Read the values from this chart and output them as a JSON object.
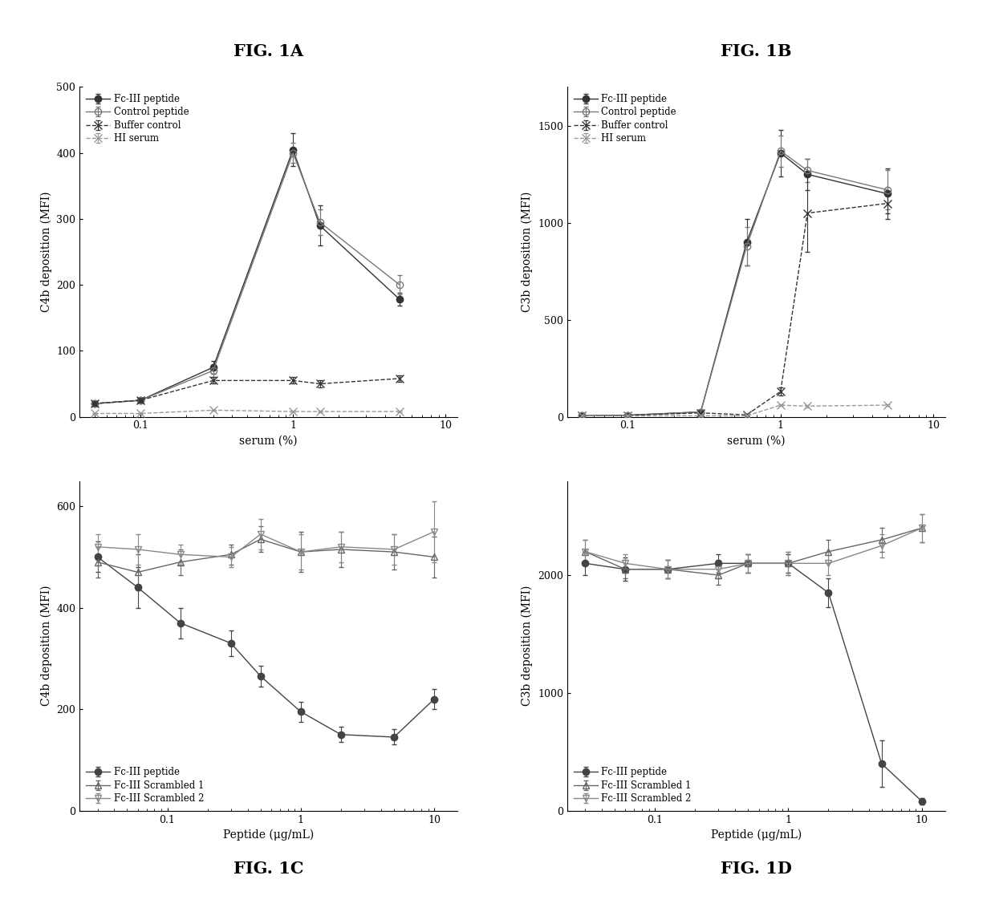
{
  "fig1A": {
    "title": "FIG. 1A",
    "xlabel": "serum (%)",
    "ylabel": "C4b deposition (MFI)",
    "ylim": [
      0,
      500
    ],
    "yticks": [
      0,
      100,
      200,
      300,
      400,
      500
    ],
    "xdata": [
      0.05,
      0.1,
      0.3,
      1.0,
      1.5,
      5.0
    ],
    "series": [
      {
        "label": "Fc-III peptide",
        "y": [
          20,
          25,
          75,
          405,
          290,
          178
        ],
        "yerr": [
          3,
          3,
          10,
          25,
          30,
          10
        ],
        "marker": "o",
        "linestyle": "-",
        "color": "#333333",
        "fillstyle": "full",
        "markersize": 6
      },
      {
        "label": "Control peptide",
        "y": [
          20,
          25,
          70,
          400,
          295,
          200
        ],
        "yerr": [
          3,
          3,
          10,
          15,
          20,
          15
        ],
        "marker": "o",
        "linestyle": "-",
        "color": "#777777",
        "fillstyle": "none",
        "markersize": 6
      },
      {
        "label": "Buffer control",
        "y": [
          20,
          25,
          55,
          55,
          50,
          58
        ],
        "yerr": [
          3,
          3,
          5,
          5,
          5,
          5
        ],
        "marker": "x",
        "linestyle": "--",
        "color": "#333333",
        "fillstyle": "full",
        "markersize": 7
      },
      {
        "label": "HI serum",
        "y": [
          5,
          5,
          10,
          8,
          8,
          8
        ],
        "yerr": [
          1,
          1,
          1,
          1,
          1,
          1
        ],
        "marker": "x",
        "linestyle": "--",
        "color": "#999999",
        "fillstyle": "full",
        "markersize": 7
      }
    ]
  },
  "fig1B": {
    "title": "FIG. 1B",
    "xlabel": "serum (%)",
    "ylabel": "C3b deposition (MFI)",
    "ylim": [
      0,
      1700
    ],
    "yticks": [
      0,
      500,
      1000,
      1500
    ],
    "xdata": [
      0.05,
      0.1,
      0.3,
      0.6,
      1.0,
      1.5,
      5.0
    ],
    "series": [
      {
        "label": "Fc-III peptide",
        "y": [
          5,
          8,
          25,
          900,
          1360,
          1250,
          1150
        ],
        "yerr": [
          2,
          3,
          5,
          120,
          120,
          80,
          130
        ],
        "marker": "o",
        "linestyle": "-",
        "color": "#333333",
        "fillstyle": "full",
        "markersize": 6
      },
      {
        "label": "Control peptide",
        "y": [
          5,
          8,
          25,
          880,
          1370,
          1270,
          1170
        ],
        "yerr": [
          2,
          3,
          5,
          100,
          80,
          60,
          100
        ],
        "marker": "o",
        "linestyle": "-",
        "color": "#777777",
        "fillstyle": "none",
        "markersize": 6
      },
      {
        "label": "Buffer control",
        "y": [
          5,
          8,
          20,
          10,
          130,
          1050,
          1100
        ],
        "yerr": [
          1,
          2,
          3,
          5,
          20,
          200,
          50
        ],
        "marker": "x",
        "linestyle": "--",
        "color": "#333333",
        "fillstyle": "full",
        "markersize": 7
      },
      {
        "label": "HI serum",
        "y": [
          5,
          5,
          5,
          5,
          60,
          55,
          60
        ],
        "yerr": [
          1,
          1,
          1,
          1,
          5,
          5,
          5
        ],
        "marker": "x",
        "linestyle": "--",
        "color": "#999999",
        "fillstyle": "full",
        "markersize": 7
      }
    ]
  },
  "fig1C": {
    "title": "FIG. 1C",
    "xlabel": "Peptide (μg/mL)",
    "ylabel": "C4b deposition (MFI)",
    "ylim": [
      0,
      650
    ],
    "yticks": [
      0,
      200,
      400,
      600
    ],
    "xdata": [
      0.03,
      0.06,
      0.125,
      0.3,
      0.5,
      1.0,
      2.0,
      5.0,
      10.0
    ],
    "series": [
      {
        "label": "Fc-III peptide",
        "y": [
          500,
          440,
          370,
          330,
          265,
          195,
          150,
          145,
          220
        ],
        "yerr": [
          30,
          40,
          30,
          25,
          20,
          20,
          15,
          15,
          20
        ],
        "marker": "o",
        "linestyle": "-",
        "color": "#444444",
        "fillstyle": "full",
        "markersize": 6
      },
      {
        "label": "Fc-III Scrambled 1",
        "y": [
          490,
          470,
          490,
          505,
          535,
          510,
          515,
          510,
          500
        ],
        "yerr": [
          30,
          35,
          25,
          20,
          25,
          40,
          35,
          35,
          40
        ],
        "marker": "^",
        "linestyle": "-",
        "color": "#666666",
        "fillstyle": "none",
        "markersize": 6
      },
      {
        "label": "Fc-III Scrambled 2",
        "y": [
          520,
          515,
          505,
          500,
          545,
          510,
          520,
          515,
          550
        ],
        "yerr": [
          25,
          30,
          20,
          20,
          30,
          35,
          30,
          30,
          60
        ],
        "marker": "v",
        "linestyle": "-",
        "color": "#888888",
        "fillstyle": "none",
        "markersize": 6
      }
    ]
  },
  "fig1D": {
    "title": "FIG. 1D",
    "xlabel": "Peptide (μg/mL)",
    "ylabel": "C3b deposition (MFI)",
    "ylim": [
      0,
      2800
    ],
    "yticks": [
      0,
      1000,
      2000
    ],
    "xdata": [
      0.03,
      0.06,
      0.125,
      0.3,
      0.5,
      1.0,
      2.0,
      5.0,
      10.0
    ],
    "series": [
      {
        "label": "Fc-III peptide",
        "y": [
          2100,
          2050,
          2050,
          2100,
          2100,
          2100,
          1850,
          400,
          80
        ],
        "yerr": [
          100,
          100,
          80,
          80,
          80,
          80,
          120,
          200,
          30
        ],
        "marker": "o",
        "linestyle": "-",
        "color": "#444444",
        "fillstyle": "full",
        "markersize": 6
      },
      {
        "label": "Fc-III Scrambled 1",
        "y": [
          2200,
          2050,
          2050,
          2000,
          2100,
          2100,
          2200,
          2300,
          2400
        ],
        "yerr": [
          100,
          80,
          80,
          80,
          80,
          100,
          100,
          100,
          120
        ],
        "marker": "^",
        "linestyle": "-",
        "color": "#666666",
        "fillstyle": "none",
        "markersize": 6
      },
      {
        "label": "Fc-III Scrambled 2",
        "y": [
          2200,
          2100,
          2050,
          2050,
          2100,
          2100,
          2100,
          2250,
          2400
        ],
        "yerr": [
          100,
          80,
          80,
          80,
          80,
          100,
          100,
          100,
          120
        ],
        "marker": "v",
        "linestyle": "-",
        "color": "#888888",
        "fillstyle": "none",
        "markersize": 6
      }
    ]
  },
  "background_color": "#ffffff",
  "title_fontsize": 15,
  "label_fontsize": 10,
  "tick_fontsize": 9,
  "legend_fontsize": 8.5
}
